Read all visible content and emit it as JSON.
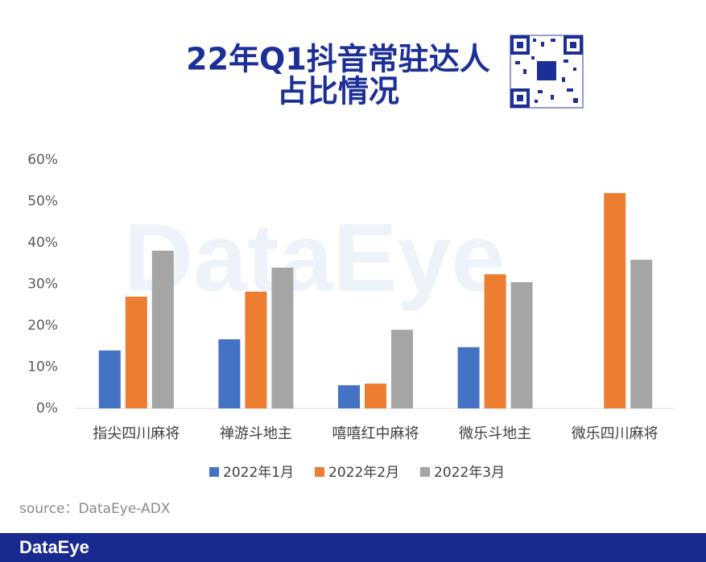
{
  "chart_data": {
    "type": "bar",
    "title": [
      "22年Q1抖音常驻达人",
      "占比情况"
    ],
    "categories": [
      "指尖四川麻将",
      "禅游斗地主",
      "嘻嘻红中麻将",
      "微乐斗地主",
      "微乐四川麻将"
    ],
    "series": [
      {
        "name": "2022年1月",
        "color": "#4472c4",
        "values": [
          14.0,
          16.7,
          5.6,
          14.8,
          null
        ]
      },
      {
        "name": "2022年2月",
        "color": "#ed7d31",
        "values": [
          27.0,
          28.2,
          6.0,
          32.4,
          52.0
        ]
      },
      {
        "name": "2022年3月",
        "color": "#a5a5a5",
        "values": [
          38.1,
          34.0,
          19.0,
          30.5,
          35.9
        ]
      }
    ],
    "ylim": [
      0,
      60
    ],
    "yticks": [
      {
        "value": 0,
        "label": "0%"
      },
      {
        "value": 10,
        "label": "10%"
      },
      {
        "value": 20,
        "label": "20%"
      },
      {
        "value": 30,
        "label": "30%"
      },
      {
        "value": 40,
        "label": "40%"
      },
      {
        "value": 50,
        "label": "50%"
      },
      {
        "value": 60,
        "label": "60%"
      }
    ],
    "grid": false,
    "legend": "bottom",
    "watermark": "DataEye",
    "source": "source：DataEye-ADX",
    "footer": "DataEye"
  }
}
